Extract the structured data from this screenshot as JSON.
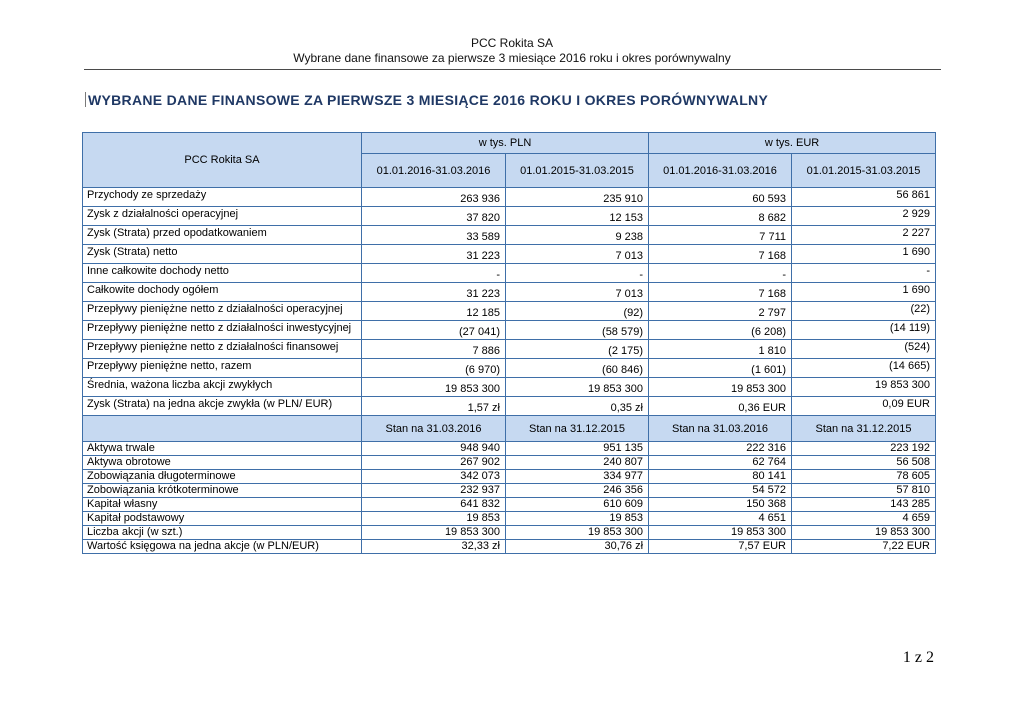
{
  "colors": {
    "header-bg": "#c6d9f1",
    "border-color": "#3f6fa8",
    "title-color": "#1f3864"
  },
  "doc_header": {
    "company": "PCC Rokita SA",
    "subtitle": "Wybrane dane finansowe za pierwsze 3 miesiące 2016 roku i okres porównywalny"
  },
  "title": "WYBRANE DANE FINANSOWE ZA PIERWSZE 3 MIESIĄCE 2016 ROKU I OKRES PORÓWNYWALNY",
  "table": {
    "corner_label": "PCC Rokita SA",
    "currency_groups": [
      "w tys. PLN",
      "w tys. EUR"
    ],
    "period_headers": [
      "01.01.2016-31.03.2016",
      "01.01.2015-31.03.2015",
      "01.01.2016-31.03.2016",
      "01.01.2015-31.03.2015"
    ],
    "income_rows": [
      {
        "label": "Przychody ze sprzedaży",
        "values": [
          "263 936",
          "235 910",
          "60 593",
          "56 861"
        ]
      },
      {
        "label": "Zysk z działalności operacyjnej",
        "values": [
          "37 820",
          "12 153",
          "8 682",
          "2 929"
        ]
      },
      {
        "label": "Zysk (Strata) przed opodatkowaniem",
        "values": [
          "33 589",
          "9 238",
          "7 711",
          "2 227"
        ]
      },
      {
        "label": "Zysk (Strata) netto",
        "values": [
          "31 223",
          "7 013",
          "7 168",
          "1 690"
        ]
      },
      {
        "label": "Inne całkowite dochody netto",
        "values": [
          "-",
          "-",
          "-",
          "-"
        ]
      },
      {
        "label": "Całkowite dochody ogółem",
        "values": [
          "31 223",
          "7 013",
          "7 168",
          "1 690"
        ]
      },
      {
        "label": "Przepływy pieniężne netto z działalności operacyjnej",
        "values": [
          "12 185",
          "(92)",
          "2 797",
          "(22)"
        ]
      },
      {
        "label": "Przepływy pieniężne netto z działalności inwestycyjnej",
        "values": [
          "(27 041)",
          "(58 579)",
          "(6 208)",
          "(14 119)"
        ]
      },
      {
        "label": "Przepływy pieniężne netto z działalności finansowej",
        "values": [
          "7 886",
          "(2 175)",
          "1 810",
          "(524)"
        ]
      },
      {
        "label": "Przepływy pieniężne netto, razem",
        "values": [
          "(6 970)",
          "(60 846)",
          "(1 601)",
          "(14 665)"
        ]
      },
      {
        "label": "Średnia, ważona liczba akcji zwykłych",
        "values": [
          "19 853 300",
          "19 853 300",
          "19 853 300",
          "19 853 300"
        ]
      },
      {
        "label": "Zysk (Strata) na jedna akcje zwykła (w PLN/ EUR)",
        "values": [
          "1,57 zł",
          "0,35 zł",
          "0,36 EUR",
          "0,09 EUR"
        ]
      }
    ],
    "balance_headers": [
      "Stan na 31.03.2016",
      "Stan na 31.12.2015",
      "Stan na 31.03.2016",
      "Stan na 31.12.2015"
    ],
    "balance_rows": [
      {
        "label": "Aktywa trwale",
        "values": [
          "948 940",
          "951 135",
          "222 316",
          "223 192"
        ]
      },
      {
        "label": "Aktywa obrotowe",
        "values": [
          "267 902",
          "240 807",
          "62 764",
          "56 508"
        ]
      },
      {
        "label": "Zobowiązania długoterminowe",
        "values": [
          "342 073",
          "334 977",
          "80 141",
          "78 605"
        ]
      },
      {
        "label": "Zobowiązania krótkoterminowe",
        "values": [
          "232 937",
          "246 356",
          "54 572",
          "57 810"
        ]
      },
      {
        "label": "Kapitał własny",
        "values": [
          "641 832",
          "610 609",
          "150 368",
          "143 285"
        ]
      },
      {
        "label": "Kapitał podstawowy",
        "values": [
          "19 853",
          "19 853",
          "4 651",
          "4 659"
        ]
      },
      {
        "label": "Liczba akcji (w szt.)",
        "values": [
          "19 853 300",
          "19 853 300",
          "19 853 300",
          "19 853 300"
        ]
      },
      {
        "label": "Wartość księgowa na jedna akcje (w PLN/EUR)",
        "values": [
          "32,33 zł",
          "30,76 zł",
          "7,57 EUR",
          "7,22 EUR"
        ]
      }
    ]
  },
  "footer": {
    "page_number": "1 z 2"
  }
}
